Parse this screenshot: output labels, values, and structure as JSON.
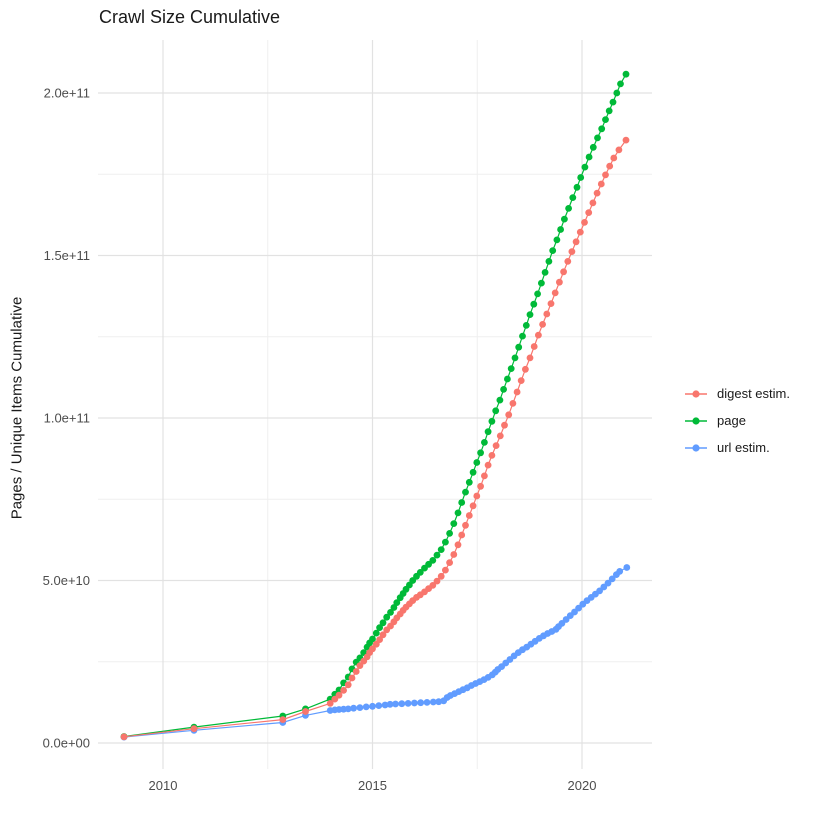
{
  "legend": {
    "position": "right",
    "items": [
      {
        "label": "digest estim.",
        "color": "#F8766D"
      },
      {
        "label": "page",
        "color": "#00BA38"
      },
      {
        "label": "url estim.",
        "color": "#619CFF"
      }
    ]
  },
  "chart_data": {
    "type": "line",
    "title": "Crawl Size Cumulative",
    "xlabel": "",
    "ylabel": "Pages / Unique Items Cumulative",
    "grid": true,
    "legend_position": "right",
    "marker": "point",
    "x_axis": {
      "tick_labels": [
        "2010",
        "2015",
        "2020"
      ],
      "tick_values": [
        2010,
        2015,
        2020
      ],
      "minor_ticks": [
        2012.5,
        2017.5
      ],
      "range": [
        2008.45,
        2021.67
      ]
    },
    "y_axis": {
      "tick_labels": [
        "0.0e+00",
        "5.0e+10",
        "1.0e+11",
        "1.5e+11",
        "2.0e+11"
      ],
      "tick_values": [
        0,
        50000000000.0,
        100000000000.0,
        150000000000.0,
        200000000000.0
      ],
      "minor_ticks": [
        25000000000.0,
        75000000000.0,
        125000000000.0,
        175000000000.0
      ],
      "range": [
        -8000000000.0,
        216300000000.0
      ]
    },
    "series": [
      {
        "name": "digest estim.",
        "color": "#F8766D",
        "points": [
          [
            2009.07,
            1900000000.0
          ],
          [
            2010.74,
            4400000000.0
          ],
          [
            2012.86,
            7200000000.0
          ],
          [
            2013.4,
            9700000000.0
          ],
          [
            2013.99,
            12200000000.0
          ],
          [
            2014.1,
            13500000000.0
          ],
          [
            2014.2,
            14700000000.0
          ],
          [
            2014.31,
            16200000000.0
          ],
          [
            2014.42,
            17900000000.0
          ],
          [
            2014.51,
            20000000000.0
          ],
          [
            2014.61,
            22000000000.0
          ],
          [
            2014.7,
            23800000000.0
          ],
          [
            2014.79,
            25200000000.0
          ],
          [
            2014.87,
            26500000000.0
          ],
          [
            2014.93,
            27800000000.0
          ],
          [
            2015.0,
            29000000000.0
          ],
          [
            2015.09,
            30400000000.0
          ],
          [
            2015.17,
            31800000000.0
          ],
          [
            2015.25,
            33300000000.0
          ],
          [
            2015.34,
            34800000000.0
          ],
          [
            2015.43,
            36000000000.0
          ],
          [
            2015.51,
            37300000000.0
          ],
          [
            2015.58,
            38500000000.0
          ],
          [
            2015.66,
            39700000000.0
          ],
          [
            2015.73,
            40800000000.0
          ],
          [
            2015.8,
            41800000000.0
          ],
          [
            2015.88,
            42800000000.0
          ],
          [
            2015.96,
            43800000000.0
          ],
          [
            2016.05,
            44800000000.0
          ],
          [
            2016.14,
            45600000000.0
          ],
          [
            2016.24,
            46500000000.0
          ],
          [
            2016.34,
            47500000000.0
          ],
          [
            2016.44,
            48500000000.0
          ],
          [
            2016.54,
            49800000000.0
          ],
          [
            2016.64,
            51300000000.0
          ],
          [
            2016.74,
            53200000000.0
          ],
          [
            2016.84,
            55500000000.0
          ],
          [
            2016.94,
            58000000000.0
          ],
          [
            2017.04,
            61000000000.0
          ],
          [
            2017.13,
            64000000000.0
          ],
          [
            2017.22,
            67000000000.0
          ],
          [
            2017.31,
            70000000000.0
          ],
          [
            2017.4,
            73000000000.0
          ],
          [
            2017.49,
            76000000000.0
          ],
          [
            2017.58,
            79000000000.0
          ],
          [
            2017.67,
            82200000000.0
          ],
          [
            2017.76,
            85500000000.0
          ],
          [
            2017.85,
            88500000000.0
          ],
          [
            2017.95,
            91500000000.0
          ],
          [
            2018.05,
            94500000000.0
          ],
          [
            2018.15,
            97800000000.0
          ],
          [
            2018.25,
            101000000000.0
          ],
          [
            2018.35,
            104500000000.0
          ],
          [
            2018.45,
            108000000000.0
          ],
          [
            2018.55,
            111500000000.0
          ],
          [
            2018.65,
            115000000000.0
          ],
          [
            2018.76,
            118500000000.0
          ],
          [
            2018.86,
            122000000000.0
          ],
          [
            2018.96,
            125500000000.0
          ],
          [
            2019.06,
            128800000000.0
          ],
          [
            2019.16,
            132000000000.0
          ],
          [
            2019.26,
            135200000000.0
          ],
          [
            2019.36,
            138500000000.0
          ],
          [
            2019.46,
            141800000000.0
          ],
          [
            2019.56,
            145000000000.0
          ],
          [
            2019.66,
            148200000000.0
          ],
          [
            2019.76,
            151200000000.0
          ],
          [
            2019.86,
            154200000000.0
          ],
          [
            2019.96,
            157200000000.0
          ],
          [
            2020.06,
            160200000000.0
          ],
          [
            2020.16,
            163200000000.0
          ],
          [
            2020.26,
            166200000000.0
          ],
          [
            2020.36,
            169200000000.0
          ],
          [
            2020.46,
            172000000000.0
          ],
          [
            2020.56,
            174800000000.0
          ],
          [
            2020.66,
            177500000000.0
          ],
          [
            2020.76,
            180000000000.0
          ],
          [
            2020.88,
            182500000000.0
          ],
          [
            2021.05,
            185500000000.0
          ]
        ]
      },
      {
        "name": "page",
        "color": "#00BA38",
        "points": [
          [
            2009.07,
            2000000000.0
          ],
          [
            2010.74,
            4900000000.0
          ],
          [
            2012.86,
            8300000000.0
          ],
          [
            2013.4,
            10500000000.0
          ],
          [
            2013.99,
            13500000000.0
          ],
          [
            2014.1,
            15000000000.0
          ],
          [
            2014.2,
            16300000000.0
          ],
          [
            2014.31,
            18500000000.0
          ],
          [
            2014.42,
            20300000000.0
          ],
          [
            2014.51,
            22800000000.0
          ],
          [
            2014.61,
            24900000000.0
          ],
          [
            2014.7,
            26200000000.0
          ],
          [
            2014.79,
            27800000000.0
          ],
          [
            2014.87,
            29500000000.0
          ],
          [
            2014.93,
            30800000000.0
          ],
          [
            2015.0,
            32000000000.0
          ],
          [
            2015.09,
            33800000000.0
          ],
          [
            2015.17,
            35500000000.0
          ],
          [
            2015.25,
            37000000000.0
          ],
          [
            2015.34,
            38700000000.0
          ],
          [
            2015.43,
            40200000000.0
          ],
          [
            2015.51,
            41700000000.0
          ],
          [
            2015.58,
            43200000000.0
          ],
          [
            2015.66,
            44700000000.0
          ],
          [
            2015.73,
            46000000000.0
          ],
          [
            2015.8,
            47300000000.0
          ],
          [
            2015.88,
            48600000000.0
          ],
          [
            2015.96,
            50000000000.0
          ],
          [
            2016.05,
            51300000000.0
          ],
          [
            2016.14,
            52500000000.0
          ],
          [
            2016.24,
            53800000000.0
          ],
          [
            2016.34,
            55000000000.0
          ],
          [
            2016.44,
            56200000000.0
          ],
          [
            2016.54,
            57800000000.0
          ],
          [
            2016.64,
            59500000000.0
          ],
          [
            2016.74,
            61800000000.0
          ],
          [
            2016.84,
            64500000000.0
          ],
          [
            2016.94,
            67500000000.0
          ],
          [
            2017.04,
            70800000000.0
          ],
          [
            2017.13,
            74000000000.0
          ],
          [
            2017.22,
            77200000000.0
          ],
          [
            2017.31,
            80200000000.0
          ],
          [
            2017.4,
            83300000000.0
          ],
          [
            2017.49,
            86300000000.0
          ],
          [
            2017.58,
            89300000000.0
          ],
          [
            2017.67,
            92500000000.0
          ],
          [
            2017.76,
            95800000000.0
          ],
          [
            2017.85,
            99000000000.0
          ],
          [
            2017.94,
            102200000000.0
          ],
          [
            2018.04,
            105500000000.0
          ],
          [
            2018.13,
            108800000000.0
          ],
          [
            2018.22,
            112000000000.0
          ],
          [
            2018.31,
            115200000000.0
          ],
          [
            2018.4,
            118500000000.0
          ],
          [
            2018.49,
            121800000000.0
          ],
          [
            2018.58,
            125200000000.0
          ],
          [
            2018.67,
            128500000000.0
          ],
          [
            2018.76,
            131800000000.0
          ],
          [
            2018.85,
            135000000000.0
          ],
          [
            2018.94,
            138200000000.0
          ],
          [
            2019.03,
            141500000000.0
          ],
          [
            2019.12,
            144800000000.0
          ],
          [
            2019.21,
            148200000000.0
          ],
          [
            2019.3,
            151500000000.0
          ],
          [
            2019.4,
            154800000000.0
          ],
          [
            2019.49,
            158000000000.0
          ],
          [
            2019.58,
            161200000000.0
          ],
          [
            2019.68,
            164500000000.0
          ],
          [
            2019.78,
            167800000000.0
          ],
          [
            2019.88,
            171000000000.0
          ],
          [
            2019.97,
            174000000000.0
          ],
          [
            2020.07,
            177200000000.0
          ],
          [
            2020.17,
            180300000000.0
          ],
          [
            2020.27,
            183300000000.0
          ],
          [
            2020.37,
            186200000000.0
          ],
          [
            2020.47,
            189000000000.0
          ],
          [
            2020.56,
            191800000000.0
          ],
          [
            2020.65,
            194500000000.0
          ],
          [
            2020.74,
            197200000000.0
          ],
          [
            2020.83,
            200000000000.0
          ],
          [
            2020.92,
            202800000000.0
          ],
          [
            2021.05,
            205800000000.0
          ]
        ]
      },
      {
        "name": "url estim.",
        "color": "#619CFF",
        "points": [
          [
            2009.07,
            1800000000.0
          ],
          [
            2010.74,
            3900000000.0
          ],
          [
            2012.86,
            6300000000.0
          ],
          [
            2013.4,
            8500000000.0
          ],
          [
            2013.99,
            10000000000.0
          ],
          [
            2014.1,
            10200000000.0
          ],
          [
            2014.2,
            10300000000.0
          ],
          [
            2014.31,
            10400000000.0
          ],
          [
            2014.42,
            10500000000.0
          ],
          [
            2014.55,
            10700000000.0
          ],
          [
            2014.7,
            10900000000.0
          ],
          [
            2014.85,
            11100000000.0
          ],
          [
            2015.0,
            11300000000.0
          ],
          [
            2015.15,
            11500000000.0
          ],
          [
            2015.3,
            11700000000.0
          ],
          [
            2015.42,
            11900000000.0
          ],
          [
            2015.55,
            12000000000.0
          ],
          [
            2015.7,
            12100000000.0
          ],
          [
            2015.85,
            12200000000.0
          ],
          [
            2016.0,
            12300000000.0
          ],
          [
            2016.15,
            12400000000.0
          ],
          [
            2016.3,
            12500000000.0
          ],
          [
            2016.45,
            12600000000.0
          ],
          [
            2016.58,
            12700000000.0
          ],
          [
            2016.7,
            13000000000.0
          ],
          [
            2016.78,
            14000000000.0
          ],
          [
            2016.86,
            14600000000.0
          ],
          [
            2016.96,
            15200000000.0
          ],
          [
            2017.06,
            15800000000.0
          ],
          [
            2017.16,
            16400000000.0
          ],
          [
            2017.26,
            17000000000.0
          ],
          [
            2017.36,
            17700000000.0
          ],
          [
            2017.46,
            18300000000.0
          ],
          [
            2017.56,
            18900000000.0
          ],
          [
            2017.66,
            19500000000.0
          ],
          [
            2017.76,
            20200000000.0
          ],
          [
            2017.86,
            21000000000.0
          ],
          [
            2017.93,
            21800000000.0
          ],
          [
            2017.99,
            22600000000.0
          ],
          [
            2018.08,
            23500000000.0
          ],
          [
            2018.18,
            24600000000.0
          ],
          [
            2018.28,
            25700000000.0
          ],
          [
            2018.38,
            26800000000.0
          ],
          [
            2018.48,
            27800000000.0
          ],
          [
            2018.58,
            28700000000.0
          ],
          [
            2018.68,
            29500000000.0
          ],
          [
            2018.78,
            30400000000.0
          ],
          [
            2018.88,
            31300000000.0
          ],
          [
            2018.98,
            32200000000.0
          ],
          [
            2019.08,
            33000000000.0
          ],
          [
            2019.18,
            33700000000.0
          ],
          [
            2019.28,
            34300000000.0
          ],
          [
            2019.38,
            35000000000.0
          ],
          [
            2019.44,
            35800000000.0
          ],
          [
            2019.52,
            36800000000.0
          ],
          [
            2019.62,
            38000000000.0
          ],
          [
            2019.72,
            39200000000.0
          ],
          [
            2019.82,
            40300000000.0
          ],
          [
            2019.92,
            41500000000.0
          ],
          [
            2020.02,
            42700000000.0
          ],
          [
            2020.12,
            43800000000.0
          ],
          [
            2020.22,
            44800000000.0
          ],
          [
            2020.32,
            45800000000.0
          ],
          [
            2020.42,
            46800000000.0
          ],
          [
            2020.52,
            48000000000.0
          ],
          [
            2020.62,
            49200000000.0
          ],
          [
            2020.72,
            50500000000.0
          ],
          [
            2020.82,
            51800000000.0
          ],
          [
            2020.9,
            52800000000.0
          ],
          [
            2021.07,
            54000000000.0
          ]
        ]
      }
    ]
  }
}
